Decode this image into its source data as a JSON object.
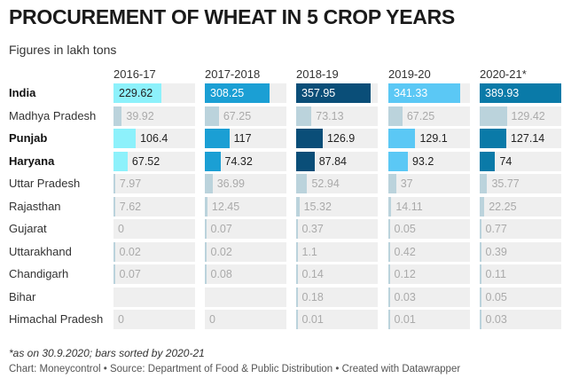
{
  "title": "PROCUREMENT OF WHEAT IN 5 CROP YEARS",
  "subtitle": "Figures in lakh tons",
  "note": "*as on 30.9.2020; bars sorted by 2020-21",
  "footer": "Chart: Moneycontrol • Source: Department of Food & Public Distribution • Created with Datawrapper",
  "colors": {
    "2016-17": "#8df1fb",
    "2017-2018": "#1b9fd4",
    "2018-19": "#0a4e78",
    "2019-20": "#5bc8f5",
    "2020-21*": "#0a7aa8",
    "light_bar": "#aac9d6",
    "cell_bg": "#efefef"
  },
  "chart_data": {
    "type": "table",
    "columns": [
      "2016-17",
      "2017-2018",
      "2018-19",
      "2019-20",
      "2020-21*"
    ],
    "rows": [
      {
        "label": "India",
        "bold": true,
        "values": [
          "229.62",
          "308.25",
          "357.95",
          "341.33",
          "389.93"
        ]
      },
      {
        "label": "Madhya Pradesh",
        "bold": false,
        "values": [
          "39.92",
          "67.25",
          "73.13",
          "67.25",
          "129.42"
        ]
      },
      {
        "label": "Punjab",
        "bold": true,
        "values": [
          "106.4",
          "117",
          "126.9",
          "129.1",
          "127.14"
        ]
      },
      {
        "label": "Haryana",
        "bold": true,
        "values": [
          "67.52",
          "74.32",
          "87.84",
          "93.2",
          "74"
        ]
      },
      {
        "label": "Uttar Pradesh",
        "bold": false,
        "values": [
          "7.97",
          "36.99",
          "52.94",
          "37",
          "35.77"
        ]
      },
      {
        "label": "Rajasthan",
        "bold": false,
        "values": [
          "7.62",
          "12.45",
          "15.32",
          "14.11",
          "22.25"
        ]
      },
      {
        "label": "Gujarat",
        "bold": false,
        "values": [
          "0",
          "0.07",
          "0.37",
          "0.05",
          "0.77"
        ]
      },
      {
        "label": "Uttarakhand",
        "bold": false,
        "values": [
          "0.02",
          "0.02",
          "1.1",
          "0.42",
          "0.39"
        ]
      },
      {
        "label": "Chandigarh",
        "bold": false,
        "values": [
          "0.07",
          "0.08",
          "0.14",
          "0.12",
          "0.11"
        ]
      },
      {
        "label": "Bihar",
        "bold": false,
        "values": [
          "",
          "",
          "0.18",
          "0.03",
          "0.05"
        ]
      },
      {
        "label": "Himachal Pradesh",
        "bold": false,
        "values": [
          "0",
          "0",
          "0.01",
          "0.01",
          "0.03"
        ]
      }
    ]
  }
}
